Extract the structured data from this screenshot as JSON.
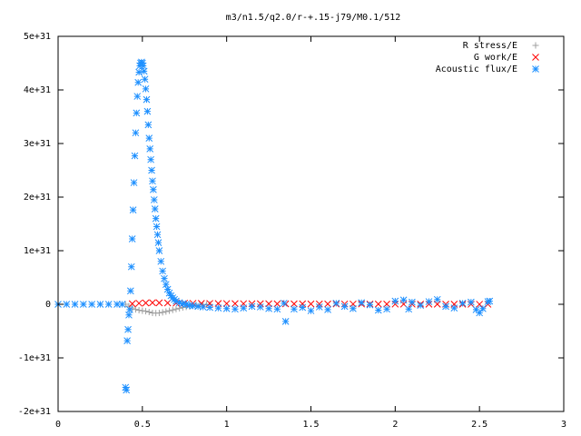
{
  "chart_data": {
    "type": "scatter",
    "title": "m3/n1.5/q2.0/r-+.15-j79/M0.1/512",
    "xlabel": "",
    "ylabel": "",
    "xlim": [
      0,
      3
    ],
    "ylim": [
      -2e+31,
      5e+31
    ],
    "x_ticks": [
      0,
      0.5,
      1,
      1.5,
      2,
      2.5,
      3
    ],
    "x_tick_labels": [
      "0",
      "0.5",
      "1",
      "1.5",
      "2",
      "2.5",
      "3"
    ],
    "y_ticks": [
      -2e+31,
      -1e+31,
      0,
      1e+31,
      2e+31,
      3e+31,
      4e+31,
      5e+31
    ],
    "y_tick_labels": [
      "-2e+31",
      "-1e+31",
      "0",
      "1e+31",
      "2e+31",
      "3e+31",
      "4e+31",
      "5e+31"
    ],
    "grid": false,
    "legend_position": "top-right",
    "series": [
      {
        "name": "R stress/E",
        "marker": "plus",
        "color": "#a0a0a0",
        "x": [
          0.4,
          0.42,
          0.44,
          0.46,
          0.48,
          0.5,
          0.52,
          0.54,
          0.56,
          0.58,
          0.6,
          0.62,
          0.64,
          0.66,
          0.68,
          0.7,
          0.72,
          0.74,
          0.76,
          0.78,
          0.8,
          0.82,
          0.84,
          0.86,
          0.88,
          0.9
        ],
        "y": [
          0,
          -3.5e+29,
          -7e+29,
          -9.5e+29,
          -1.1e+30,
          -1.2e+30,
          -1.3e+30,
          -1.45e+30,
          -1.6e+30,
          -1.65e+30,
          -1.6e+30,
          -1.5e+30,
          -1.35e+30,
          -1.2e+30,
          -1.05e+30,
          -9e+29,
          -7.5e+29,
          -6e+29,
          -4.8e+29,
          -3.8e+29,
          -2.8e+29,
          -2e+29,
          -1.4e+29,
          -9e+28,
          -5e+28,
          -2e+28
        ]
      },
      {
        "name": "G work/E",
        "marker": "cross",
        "color": "#ff0000",
        "x": [
          0.44,
          0.48,
          0.52,
          0.56,
          0.6,
          0.65,
          0.7,
          0.75,
          0.8,
          0.85,
          0.9,
          0.95,
          1.0,
          1.05,
          1.1,
          1.15,
          1.2,
          1.25,
          1.3,
          1.35,
          1.4,
          1.45,
          1.5,
          1.55,
          1.6,
          1.65,
          1.7,
          1.75,
          1.8,
          1.85,
          1.9,
          1.95,
          2.0,
          2.05,
          2.1,
          2.15,
          2.2,
          2.25,
          2.3,
          2.35,
          2.4,
          2.45,
          2.5,
          2.55
        ],
        "y": [
          1e+29,
          2e+29,
          2.5e+29,
          3e+29,
          2.8e+29,
          2.5e+29,
          2.2e+29,
          2e+29,
          1.8e+29,
          1.7e+29,
          1.6e+29,
          1.5e+29,
          1.4e+29,
          1.3e+29,
          1.2e+29,
          1.1e+29,
          1e+29,
          1e+29,
          9e+28,
          9e+28,
          8e+28,
          8e+28,
          7e+28,
          7e+28,
          6e+28,
          6e+28,
          5e+28,
          5e+28,
          5e+28,
          4e+28,
          4e+28,
          4e+28,
          3e+28,
          3e+28,
          3e+28,
          3e+28,
          2e+28,
          2e+28,
          2e+28,
          2e+28,
          2e+28,
          1e+28,
          1e+28,
          1e+28
        ]
      },
      {
        "name": "Acoustic flux/E",
        "marker": "star",
        "color": "#1e90ff",
        "x": [
          0.0,
          0.05,
          0.1,
          0.15,
          0.2,
          0.25,
          0.3,
          0.35,
          0.38,
          0.4,
          0.405,
          0.41,
          0.415,
          0.42,
          0.425,
          0.43,
          0.435,
          0.44,
          0.445,
          0.45,
          0.455,
          0.46,
          0.465,
          0.47,
          0.475,
          0.48,
          0.485,
          0.49,
          0.495,
          0.5,
          0.505,
          0.51,
          0.515,
          0.52,
          0.525,
          0.53,
          0.535,
          0.54,
          0.545,
          0.55,
          0.555,
          0.56,
          0.565,
          0.57,
          0.575,
          0.58,
          0.585,
          0.59,
          0.595,
          0.6,
          0.61,
          0.62,
          0.63,
          0.64,
          0.65,
          0.66,
          0.67,
          0.68,
          0.69,
          0.7,
          0.72,
          0.74,
          0.76,
          0.78,
          0.8,
          0.83,
          0.86,
          0.9,
          0.95,
          1.0,
          1.05,
          1.1,
          1.15,
          1.2,
          1.25,
          1.3,
          1.34,
          1.35,
          1.4,
          1.45,
          1.5,
          1.55,
          1.6,
          1.65,
          1.7,
          1.75,
          1.8,
          1.85,
          1.9,
          1.95,
          2.0,
          2.05,
          2.08,
          2.1,
          2.15,
          2.2,
          2.25,
          2.3,
          2.35,
          2.4,
          2.45,
          2.48,
          2.5,
          2.52,
          2.55,
          2.56
        ],
        "y": [
          0,
          0,
          0,
          0,
          0,
          0,
          0,
          0,
          0,
          -1.55e+31,
          -1.6e+31,
          -6.8e+30,
          -4.7e+30,
          -2e+30,
          -1e+30,
          2.5e+30,
          7e+30,
          1.22e+31,
          1.76e+31,
          2.27e+31,
          2.77e+31,
          3.2e+31,
          3.57e+31,
          3.88e+31,
          4.14e+31,
          4.33e+31,
          4.45e+31,
          4.5e+31,
          4.52e+31,
          4.5e+31,
          4.45e+31,
          4.35e+31,
          4.2e+31,
          4.02e+31,
          3.82e+31,
          3.6e+31,
          3.35e+31,
          3.1e+31,
          2.9e+31,
          2.7e+31,
          2.5e+31,
          2.3e+31,
          2.14e+31,
          1.95e+31,
          1.78e+31,
          1.6e+31,
          1.45e+31,
          1.3e+31,
          1.15e+31,
          1e+31,
          8e+30,
          6.2e+30,
          4.8e+30,
          3.7e+30,
          2.8e+30,
          2.1e+30,
          1.6e+30,
          1.2e+30,
          9e+29,
          6e+29,
          3e+29,
          1e+29,
          0,
          -2e+29,
          -3e+29,
          -4e+29,
          -5e+29,
          -6e+29,
          -7e+29,
          -8e+29,
          -9e+29,
          -7e+29,
          -4e+29,
          -5e+29,
          -8e+29,
          -9e+29,
          2e+29,
          -3.2e+30,
          -9e+29,
          -6e+29,
          -1.2e+30,
          -5e+29,
          -1e+30,
          2e+29,
          -4e+29,
          -8e+29,
          3e+29,
          -1e+29,
          -1.1e+30,
          -9e+29,
          6e+29,
          8e+29,
          -9e+29,
          4e+29,
          -2e+29,
          5e+29,
          9e+29,
          -4e+29,
          -7e+29,
          2e+29,
          4e+29,
          -1e+30,
          -1.6e+30,
          -8e+29,
          5e+29,
          6e+29
        ]
      }
    ]
  }
}
